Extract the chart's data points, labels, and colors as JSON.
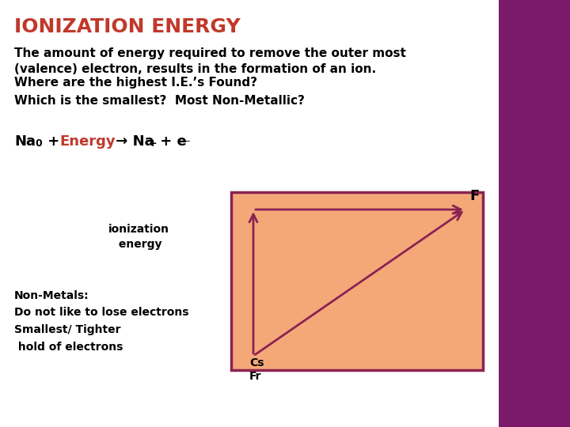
{
  "title": "IONIZATION ENERGY",
  "title_color": "#c0392b",
  "title_fontsize": 18,
  "bg_color": "#ffffff",
  "paragraph1": "The amount of energy required to remove the outer most\n(valence) electron, results in the formation of an ion.",
  "paragraph2": "Where are the highest I.E.’s Found?",
  "paragraph3": "Which is the smallest?  Most Non-Metallic?",
  "equation_color_energy": "#c0392b",
  "equation_color_normal": "#000000",
  "box_bg_color": "#f4a878",
  "box_border_color": "#8b2252",
  "arrow_color": "#8b2252",
  "label_cs_fr": "Cs\nFr",
  "label_f": "F",
  "ionization_label": "ionization\n energy",
  "nonmetals_text": "Non-Metals:\nDo not like to lose electrons\nSmallest/ Tighter\n hold of electrons",
  "text_fontsize": 11,
  "right_strip_color": "#7b1a6b"
}
